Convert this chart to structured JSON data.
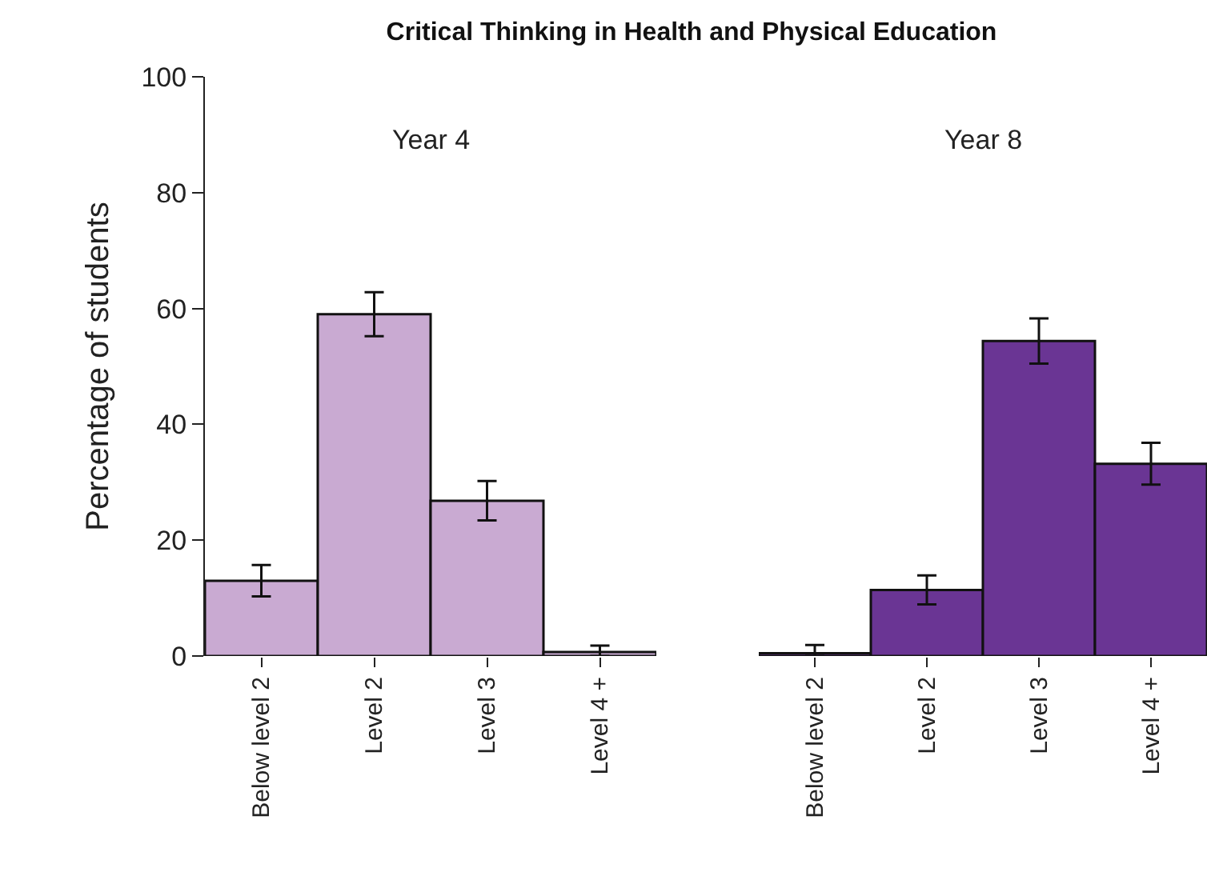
{
  "chart_data": [
    {
      "type": "bar",
      "title": "Critical Thinking in Health and Physical Education",
      "subtitle": "Year 4",
      "ylabel": "Percentage of students",
      "categories": [
        "Below level 2",
        "Level 2",
        "Level 3",
        "Level 4 +"
      ],
      "values": [
        13,
        59,
        26.8,
        0.7
      ],
      "errors": [
        2.7,
        3.8,
        3.4,
        [
          0,
          1.8
        ]
      ],
      "color": "#c9aad2",
      "ylim": [
        0,
        100
      ],
      "yticks": [
        0,
        20,
        40,
        60,
        80,
        100
      ],
      "grid": false
    },
    {
      "type": "bar",
      "subtitle": "Year 8",
      "categories": [
        "Below level 2",
        "Level 2",
        "Level 3",
        "Level 4 +"
      ],
      "values": [
        0.5,
        11.4,
        54.4,
        33.2
      ],
      "errors": [
        [
          0,
          1.9
        ],
        2.5,
        3.9,
        3.6
      ],
      "color": "#6a3594",
      "ylim": [
        0,
        100
      ],
      "yticks": [
        0,
        20,
        40,
        60,
        80,
        100
      ],
      "grid": false,
      "tick_labels": "x"
    }
  ]
}
